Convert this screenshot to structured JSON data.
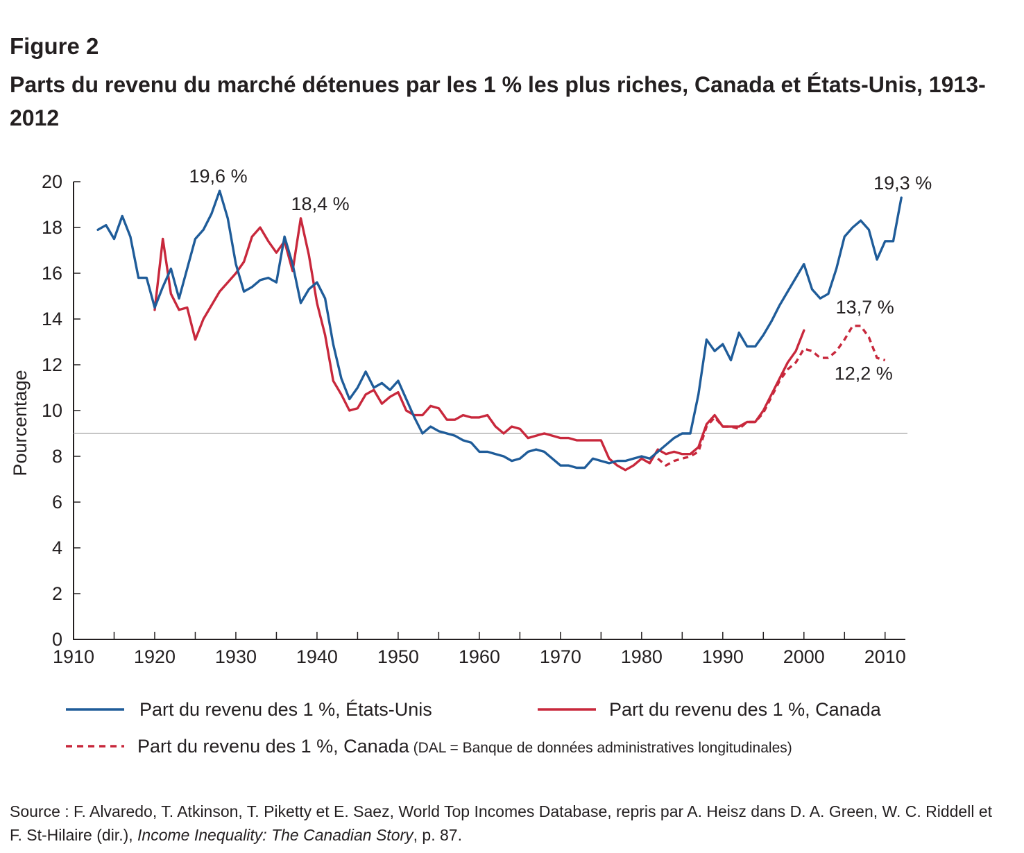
{
  "figure_label": "Figure 2",
  "title": "Parts du revenu du marché détenues par les 1 % les plus riches, Canada et États-Unis, 1913-2012",
  "source": {
    "prefix": "Source : F. Alvaredo, T. Atkinson, T. Piketty et E. Saez, World Top Incomes Database, repris par A. Heisz dans D. A. Green, W. C. Riddell et F. St-Hilaire (dir.), ",
    "book": "Income Inequality: The Canadian Story",
    "suffix": ", p. 87."
  },
  "chart_data": {
    "type": "line",
    "title": "Parts du revenu du marché détenues par les 1 % les plus riches, Canada et États-Unis, 1913-2012",
    "xlabel": "",
    "ylabel": "Pourcentage",
    "xlim": [
      1910,
      2012.5
    ],
    "ylim": [
      0,
      20
    ],
    "x_ticks": [
      1910,
      1920,
      1930,
      1940,
      1950,
      1960,
      1970,
      1980,
      1990,
      2000,
      2010
    ],
    "y_ticks": [
      0,
      2,
      4,
      6,
      8,
      10,
      12,
      14,
      16,
      18,
      20
    ],
    "grid": false,
    "reference_line_y": 9.0,
    "legend_position": "bottom",
    "series": [
      {
        "name": "Part du revenu des 1 %, États-Unis",
        "color": "#1f5c99",
        "style": "solid",
        "x": [
          1913,
          1914,
          1915,
          1916,
          1917,
          1918,
          1919,
          1920,
          1921,
          1922,
          1923,
          1924,
          1925,
          1926,
          1927,
          1928,
          1929,
          1930,
          1931,
          1932,
          1933,
          1934,
          1935,
          1936,
          1937,
          1938,
          1939,
          1940,
          1941,
          1942,
          1943,
          1944,
          1945,
          1946,
          1947,
          1948,
          1949,
          1950,
          1951,
          1952,
          1953,
          1954,
          1955,
          1956,
          1957,
          1958,
          1959,
          1960,
          1961,
          1962,
          1963,
          1964,
          1965,
          1966,
          1967,
          1968,
          1969,
          1970,
          1971,
          1972,
          1973,
          1974,
          1975,
          1976,
          1977,
          1978,
          1979,
          1980,
          1981,
          1982,
          1983,
          1984,
          1985,
          1986,
          1987,
          1988,
          1989,
          1990,
          1991,
          1992,
          1993,
          1994,
          1995,
          1996,
          1997,
          1998,
          1999,
          2000,
          2001,
          2002,
          2003,
          2004,
          2005,
          2006,
          2007,
          2008,
          2009,
          2010,
          2011,
          2012
        ],
        "values": [
          17.9,
          18.1,
          17.5,
          18.5,
          17.6,
          15.8,
          15.8,
          14.5,
          15.4,
          16.2,
          14.9,
          16.2,
          17.5,
          17.9,
          18.6,
          19.6,
          18.4,
          16.4,
          15.2,
          15.4,
          15.7,
          15.8,
          15.6,
          17.6,
          16.4,
          14.7,
          15.3,
          15.6,
          14.9,
          12.9,
          11.4,
          10.5,
          11.0,
          11.7,
          11.0,
          11.2,
          10.9,
          11.3,
          10.5,
          9.7,
          9.0,
          9.3,
          9.1,
          9.0,
          8.9,
          8.7,
          8.6,
          8.2,
          8.2,
          8.1,
          8.0,
          7.8,
          7.9,
          8.2,
          8.3,
          8.2,
          7.9,
          7.6,
          7.6,
          7.5,
          7.5,
          7.9,
          7.8,
          7.7,
          7.8,
          7.8,
          7.9,
          8.0,
          7.9,
          8.2,
          8.5,
          8.8,
          9.0,
          9.0,
          10.7,
          13.1,
          12.6,
          12.9,
          12.2,
          13.4,
          12.8,
          12.8,
          13.3,
          13.9,
          14.6,
          15.2,
          15.8,
          16.4,
          15.3,
          14.9,
          15.1,
          16.2,
          17.6,
          18.0,
          18.3,
          17.9,
          16.6,
          17.4,
          17.4,
          19.3
        ]
      },
      {
        "name": "Part du revenu des 1 %, Canada",
        "color": "#c8283c",
        "style": "solid",
        "x": [
          1920,
          1921,
          1922,
          1923,
          1924,
          1925,
          1926,
          1927,
          1928,
          1929,
          1930,
          1931,
          1932,
          1933,
          1934,
          1935,
          1936,
          1937,
          1938,
          1939,
          1940,
          1941,
          1942,
          1943,
          1944,
          1945,
          1946,
          1947,
          1948,
          1949,
          1950,
          1951,
          1952,
          1953,
          1954,
          1955,
          1956,
          1957,
          1958,
          1959,
          1960,
          1961,
          1962,
          1963,
          1964,
          1965,
          1966,
          1967,
          1968,
          1969,
          1970,
          1971,
          1972,
          1973,
          1974,
          1975,
          1976,
          1977,
          1978,
          1979,
          1980,
          1981,
          1982,
          1983,
          1984,
          1985,
          1986,
          1987,
          1988,
          1989,
          1990,
          1991,
          1992,
          1993,
          1994,
          1995,
          1996,
          1997,
          1998,
          1999,
          2000
        ],
        "values": [
          14.4,
          17.5,
          15.1,
          14.4,
          14.5,
          13.1,
          14.0,
          14.6,
          15.2,
          15.6,
          16.0,
          16.5,
          17.6,
          18.0,
          17.4,
          16.9,
          17.4,
          16.1,
          18.4,
          16.8,
          14.7,
          13.3,
          11.3,
          10.7,
          10.0,
          10.1,
          10.7,
          10.9,
          10.3,
          10.6,
          10.8,
          10.0,
          9.8,
          9.8,
          10.2,
          10.1,
          9.6,
          9.6,
          9.8,
          9.7,
          9.7,
          9.8,
          9.3,
          9.0,
          9.3,
          9.2,
          8.8,
          8.9,
          9.0,
          8.9,
          8.8,
          8.8,
          8.7,
          8.7,
          8.7,
          8.7,
          7.9,
          7.6,
          7.4,
          7.6,
          7.9,
          7.7,
          8.3,
          8.1,
          8.2,
          8.1,
          8.1,
          8.4,
          9.4,
          9.8,
          9.3,
          9.3,
          9.3,
          9.5,
          9.5,
          10.0,
          10.7,
          11.4,
          12.1,
          12.6,
          13.5
        ]
      },
      {
        "name": "Part du revenu des 1 %, Canada",
        "name_note": "(DAL = Banque de données administratives longitudinales)",
        "color": "#c8283c",
        "style": "dashed",
        "x": [
          1982,
          1983,
          1984,
          1985,
          1986,
          1987,
          1988,
          1989,
          1990,
          1991,
          1992,
          1993,
          1994,
          1995,
          1996,
          1997,
          1998,
          1999,
          2000,
          2001,
          2002,
          2003,
          2004,
          2005,
          2006,
          2007,
          2008,
          2009,
          2010
        ],
        "values": [
          7.9,
          7.6,
          7.8,
          7.9,
          8.0,
          8.2,
          9.3,
          9.7,
          9.3,
          9.3,
          9.2,
          9.5,
          9.5,
          9.9,
          10.6,
          11.3,
          11.8,
          12.1,
          12.7,
          12.6,
          12.3,
          12.3,
          12.6,
          13.1,
          13.7,
          13.7,
          13.2,
          12.3,
          12.2
        ]
      }
    ],
    "annotations": [
      {
        "text": "19,6 %",
        "x": 1928,
        "y": 19.6
      },
      {
        "text": "18,4 %",
        "x": 1938,
        "y": 18.4
      },
      {
        "text": "19,3 %",
        "x": 2012,
        "y": 19.3
      },
      {
        "text": "13,7 %",
        "x": 2007,
        "y": 13.7
      },
      {
        "text": "12,2 %",
        "x": 2010,
        "y": 12.2
      }
    ]
  }
}
